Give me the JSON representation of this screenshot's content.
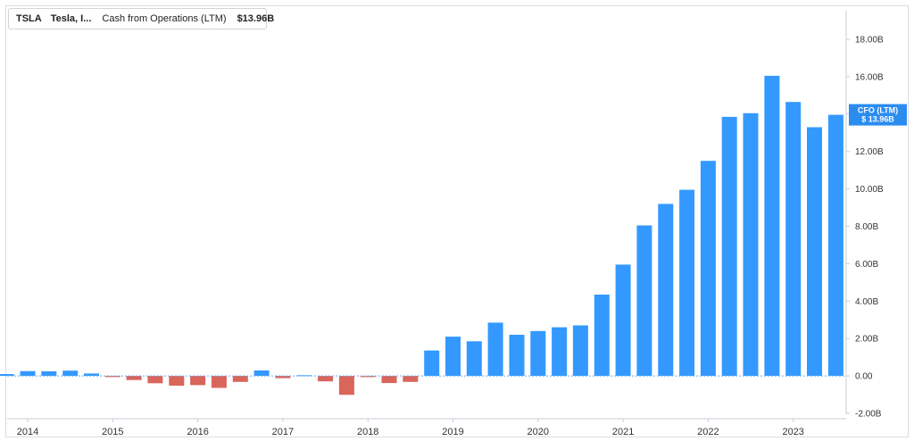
{
  "legend": {
    "ticker": "TSLA",
    "company": "Tesla, I...",
    "metric": "Cash from Operations (LTM)",
    "value": "$13.96B",
    "color": "#2d8fef"
  },
  "flag": {
    "label": "CFO (LTM)",
    "value": "$ 13.96B",
    "color": "#2b8cf0"
  },
  "chart_data": {
    "type": "bar",
    "y_unit": "USD billions",
    "ylim": [
      -2,
      19
    ],
    "yticks": [
      18,
      16,
      14,
      12,
      10,
      8,
      6,
      4,
      2,
      0,
      -2
    ],
    "ytick_labels": [
      "18.00B",
      "16.00B",
      "14.00B",
      "12.00B",
      "10.00B",
      "8.00B",
      "6.00B",
      "4.00B",
      "2.00B",
      "0.00",
      "-2.00B"
    ],
    "x_labels": [
      "2014",
      "2015",
      "2016",
      "2017",
      "2018",
      "2019",
      "2020",
      "2021",
      "2022",
      "2023"
    ],
    "x_label_years": [
      2014,
      2015,
      2016,
      2017,
      2018,
      2019,
      2020,
      2021,
      2022,
      2023
    ],
    "positive_color": "#3399ff",
    "negative_color": "#d9655b",
    "bars": [
      {
        "x": 2013.75,
        "value": 0.1
      },
      {
        "x": 2014.0,
        "value": 0.26
      },
      {
        "x": 2014.25,
        "value": 0.25
      },
      {
        "x": 2014.5,
        "value": 0.28
      },
      {
        "x": 2014.75,
        "value": 0.13
      },
      {
        "x": 2015.0,
        "value": -0.06
      },
      {
        "x": 2015.25,
        "value": -0.22
      },
      {
        "x": 2015.5,
        "value": -0.39
      },
      {
        "x": 2015.75,
        "value": -0.52
      },
      {
        "x": 2016.0,
        "value": -0.49
      },
      {
        "x": 2016.25,
        "value": -0.64
      },
      {
        "x": 2016.5,
        "value": -0.32
      },
      {
        "x": 2016.75,
        "value": 0.29
      },
      {
        "x": 2017.0,
        "value": -0.12
      },
      {
        "x": 2017.25,
        "value": 0.04
      },
      {
        "x": 2017.5,
        "value": -0.29
      },
      {
        "x": 2017.75,
        "value": -1.01
      },
      {
        "x": 2018.0,
        "value": -0.06
      },
      {
        "x": 2018.25,
        "value": -0.38
      },
      {
        "x": 2018.5,
        "value": -0.32
      },
      {
        "x": 2018.75,
        "value": 1.36
      },
      {
        "x": 2019.0,
        "value": 2.1
      },
      {
        "x": 2019.25,
        "value": 1.85
      },
      {
        "x": 2019.5,
        "value": 2.85
      },
      {
        "x": 2019.75,
        "value": 2.2
      },
      {
        "x": 2020.0,
        "value": 2.4
      },
      {
        "x": 2020.25,
        "value": 2.6
      },
      {
        "x": 2020.5,
        "value": 2.7
      },
      {
        "x": 2020.75,
        "value": 4.35
      },
      {
        "x": 2021.0,
        "value": 5.95
      },
      {
        "x": 2021.25,
        "value": 8.05
      },
      {
        "x": 2021.5,
        "value": 9.2
      },
      {
        "x": 2021.75,
        "value": 9.95
      },
      {
        "x": 2022.0,
        "value": 11.5
      },
      {
        "x": 2022.25,
        "value": 13.85
      },
      {
        "x": 2022.5,
        "value": 14.05
      },
      {
        "x": 2022.75,
        "value": 16.05
      },
      {
        "x": 2023.0,
        "value": 14.65
      },
      {
        "x": 2023.25,
        "value": 13.3
      },
      {
        "x": 2023.5,
        "value": 13.96
      }
    ]
  }
}
